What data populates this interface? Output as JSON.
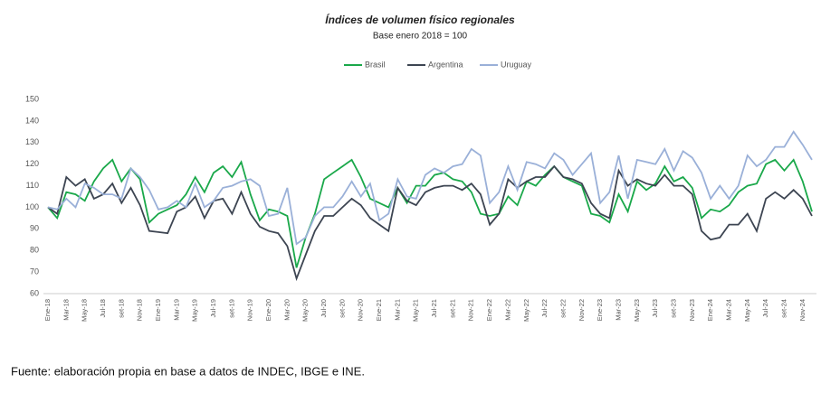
{
  "chart_data": {
    "type": "line",
    "title": "Índices de volumen físico regionales",
    "subtitle": "Base enero 2018 = 100",
    "source": "Fuente: elaboración propia en base a datos de INDEC, IBGE e INE.",
    "categories": [
      "Ene-18",
      null,
      "Mar-18",
      null,
      "May-18",
      null,
      "Jul-18",
      null,
      "set-18",
      null,
      "Nov-18",
      null,
      "Ene-19",
      null,
      "Mar-19",
      null,
      "May-19",
      null,
      "Jul-19",
      null,
      "set-19",
      null,
      "Nov-19",
      null,
      "Ene-20",
      null,
      "Mar-20",
      null,
      "May-20",
      null,
      "Jul-20",
      null,
      "set-20",
      null,
      "Nov-20",
      null,
      "Ene-21",
      null,
      "Mar-21",
      null,
      "May-21",
      null,
      "Jul-21",
      null,
      "set-21",
      null,
      "Nov-21",
      null,
      "Ene-22",
      null,
      "Mar-22",
      null,
      "May-22",
      null,
      "Jul-22",
      null,
      "set-22",
      null,
      "Nov-22",
      null,
      "Ene-23",
      null,
      "Mar-23",
      null,
      "May-23",
      null,
      "Jul-23",
      null,
      "set-23",
      null,
      "Nov-23",
      null,
      "Ene-24",
      null,
      "Mar-24",
      null,
      "May-24",
      null,
      "Jul-24",
      null,
      "set-24",
      null,
      "Nov-24",
      null
    ],
    "series": [
      {
        "name": "Brasil",
        "color": "#1aa84a",
        "values": [
          100,
          95,
          107,
          106,
          103,
          112,
          118,
          122,
          112,
          118,
          113,
          93,
          97,
          99,
          101,
          106,
          114,
          107,
          116,
          119,
          114,
          121,
          106,
          94,
          99,
          98,
          96,
          72,
          86,
          97,
          113,
          116,
          119,
          122,
          114,
          104,
          102,
          100,
          109,
          102,
          110,
          110,
          115,
          116,
          113,
          112,
          107,
          97,
          96,
          97,
          105,
          101,
          112,
          110,
          115,
          119,
          114,
          112,
          110,
          97,
          96,
          93,
          106,
          98,
          112,
          108,
          111,
          119,
          112,
          114,
          109,
          95,
          99,
          98,
          101,
          107,
          110,
          111,
          120,
          122,
          117,
          122,
          112,
          98
        ]
      },
      {
        "name": "Argentina",
        "color": "#3d4552",
        "values": [
          100,
          97,
          114,
          110,
          113,
          104,
          106,
          111,
          102,
          109,
          101,
          89,
          88.5,
          88,
          98,
          100,
          105,
          95,
          103,
          104,
          97,
          107,
          97,
          91,
          89,
          88,
          82,
          67,
          78,
          89,
          96,
          96,
          100,
          104,
          101,
          95,
          92,
          89,
          109,
          103,
          101,
          107,
          109,
          110,
          110,
          108,
          111,
          106,
          92,
          97,
          113,
          109,
          112,
          114,
          114,
          119,
          114,
          113,
          111,
          102,
          97,
          95,
          117,
          110,
          113,
          111,
          110,
          115,
          110,
          110,
          106,
          89,
          85,
          86,
          92,
          92,
          97,
          89,
          104,
          107,
          104,
          108,
          104,
          96
        ]
      },
      {
        "name": "Uruguay",
        "color": "#9ab0d8",
        "values": [
          100,
          99,
          104,
          100,
          111,
          109,
          106,
          106,
          104,
          118,
          114,
          108,
          99,
          100,
          103,
          100,
          111,
          100,
          103,
          109,
          110,
          112,
          113,
          110,
          96,
          97,
          109,
          83,
          86,
          96,
          100,
          100,
          105,
          112,
          105,
          111,
          94,
          97,
          113,
          105,
          104,
          115,
          118,
          116,
          119,
          120,
          127,
          124,
          102,
          107,
          119,
          108,
          121,
          120,
          118,
          125,
          122,
          115,
          120,
          125,
          102,
          107,
          124,
          104,
          122,
          121,
          120,
          127,
          117,
          126,
          123,
          116,
          104,
          110,
          104,
          110,
          124,
          119,
          122,
          128,
          128,
          135,
          129,
          122
        ]
      }
    ],
    "ylim": [
      60,
      150
    ],
    "yticks": [
      60,
      70,
      80,
      90,
      100,
      110,
      120,
      130,
      140,
      150
    ],
    "grid": false,
    "legend": "top"
  }
}
